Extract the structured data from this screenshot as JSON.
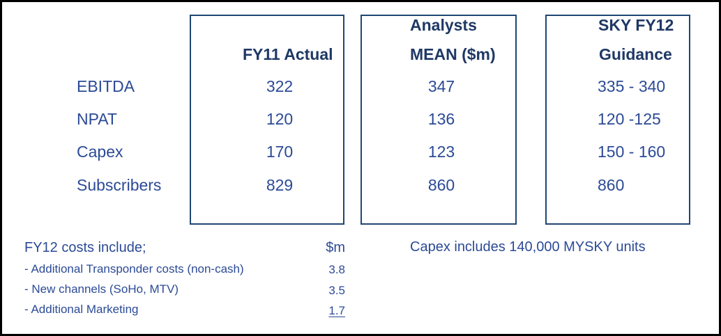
{
  "colors": {
    "frame_border": "#000000",
    "box_border": "#1f4673",
    "header_text": "#1f3864",
    "body_text": "#2b4a96"
  },
  "table": {
    "columns": {
      "fy11": {
        "header": "FY11 Actual"
      },
      "analysts": {
        "header_line1": "Analysts",
        "header_line2": "MEAN ($m)"
      },
      "guidance": {
        "header_line1": "SKY FY12",
        "header_line2": "Guidance"
      }
    },
    "rows": [
      {
        "label": "EBITDA",
        "fy11": "322",
        "analysts": "347",
        "guidance": "335 - 340"
      },
      {
        "label": "NPAT",
        "fy11": "120",
        "analysts": "136",
        "guidance": "120 -125"
      },
      {
        "label": "Capex",
        "fy11": "170",
        "analysts": "123",
        "guidance": "150 - 160"
      },
      {
        "label": "Subscribers",
        "fy11": "829",
        "analysts": "860",
        "guidance": "860"
      }
    ]
  },
  "notes": {
    "costs": {
      "heading": "FY12 costs include;",
      "unit_header": "$m",
      "items": [
        {
          "label": "- Additional Transponder costs (non-cash)",
          "value": "3.8"
        },
        {
          "label": "- New channels (SoHo, MTV)",
          "value": "3.5"
        },
        {
          "label": "- Additional Marketing",
          "value": "1.7"
        }
      ]
    },
    "capex_note": "Capex includes 140,000 MYSKY units"
  }
}
